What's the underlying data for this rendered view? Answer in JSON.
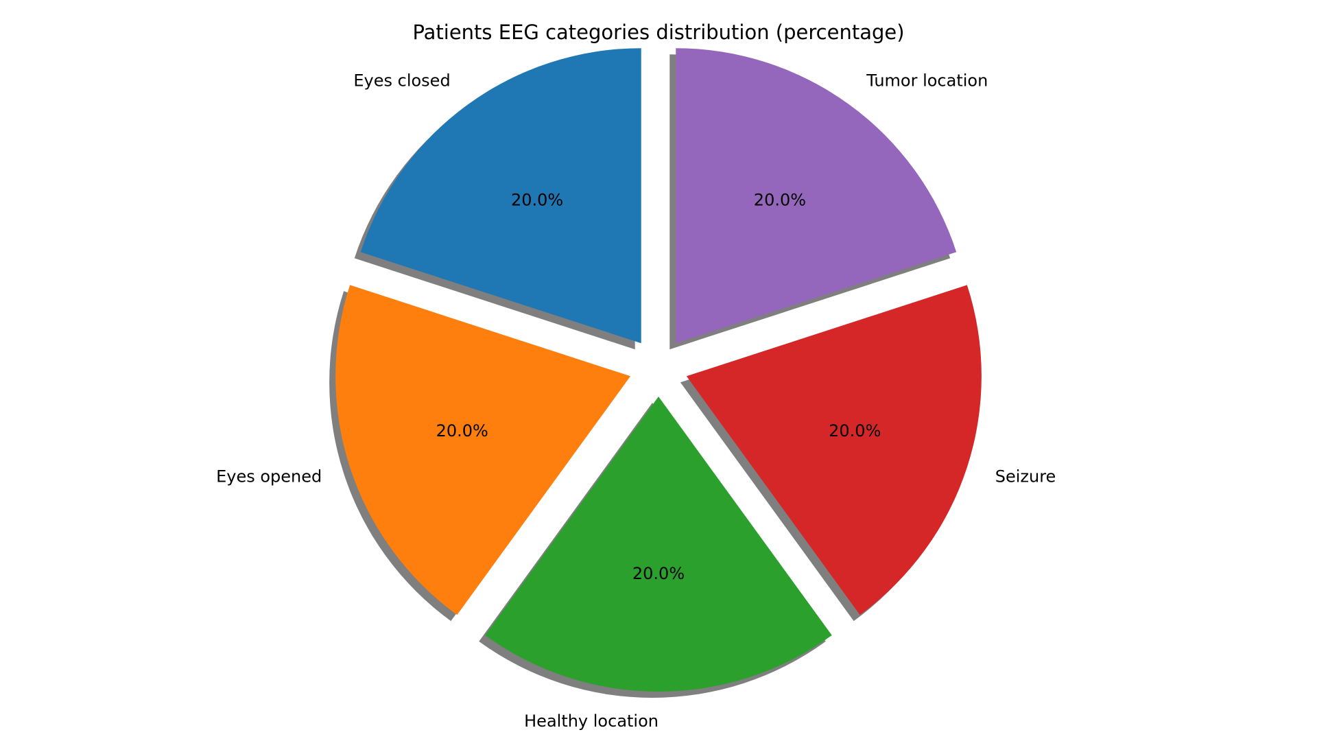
{
  "chart_data": {
    "type": "pie",
    "title": "Patients EEG categories distribution (percentage)",
    "categories": [
      "Eyes closed",
      "Eyes opened",
      "Healthy location",
      "Seizure",
      "Tumor location"
    ],
    "values": [
      20.0,
      20.0,
      20.0,
      20.0,
      20.0
    ],
    "value_labels": [
      "20.0%",
      "20.0%",
      "20.0%",
      "20.0%",
      "20.0%"
    ],
    "colors": [
      "#1f77b4",
      "#ff7f0e",
      "#2ca02c",
      "#d62728",
      "#9467bd"
    ],
    "exploded": true,
    "shadow": true,
    "start_angle_deg": 90,
    "direction": "counterclockwise"
  }
}
